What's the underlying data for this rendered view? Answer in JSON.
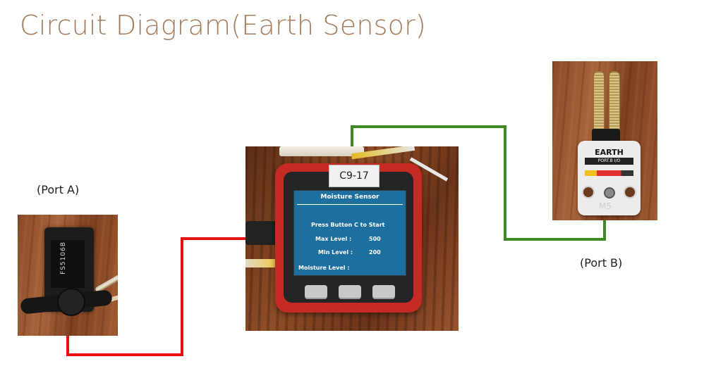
{
  "title": "Circuit Diagram(Earth Sensor)",
  "port_a_label": "(Port A)",
  "port_b_label": "(Port B)",
  "colors": {
    "title": "#a57c5b",
    "wire_port_a": "#e81111",
    "wire_port_b": "#3b8a24"
  },
  "device": {
    "sticker": "C9-17",
    "screen": {
      "title": "Moisture Sensor",
      "instruction": "Press Button C to Start",
      "max_level_label": "Max Level :",
      "max_level_value": "500",
      "min_level_label": "Min Level :",
      "min_level_value": "200",
      "moisture_level_label": "Moisture Level :"
    }
  },
  "servo": {
    "model": "FS5106B"
  },
  "earth_unit": {
    "title": "EARTH",
    "port_text": "PORT.B  I/O",
    "logo": "M5"
  }
}
